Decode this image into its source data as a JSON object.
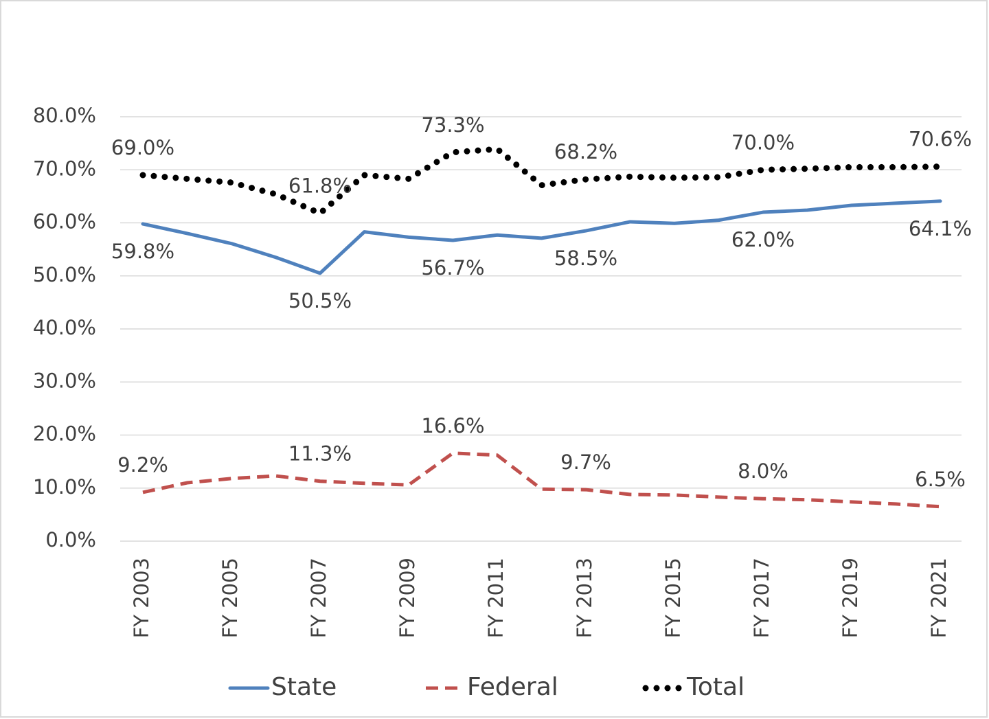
{
  "chart_data": {
    "type": "line",
    "categories": [
      "FY 2003",
      null,
      "FY 2005",
      null,
      "FY 2007",
      null,
      "FY 2009",
      null,
      "FY 2011",
      null,
      "FY 2013",
      null,
      "FY 2015",
      null,
      "FY 2017",
      null,
      "FY 2019",
      null,
      "FY 2021"
    ],
    "series": [
      {
        "name": "State",
        "color": "#4f81bd",
        "style": "solid",
        "values": [
          59.8,
          58.0,
          56.1,
          53.5,
          50.5,
          58.3,
          57.3,
          56.7,
          57.7,
          57.1,
          58.5,
          60.2,
          59.9,
          60.5,
          62.0,
          62.4,
          63.3,
          63.7,
          64.1
        ],
        "value_labels": [
          "59.8%",
          null,
          null,
          null,
          "50.5%",
          null,
          null,
          "56.7%",
          null,
          null,
          "58.5%",
          null,
          null,
          null,
          "62.0%",
          null,
          null,
          null,
          "64.1%"
        ]
      },
      {
        "name": "Federal",
        "color": "#c0504d",
        "style": "dashed",
        "values": [
          9.2,
          11.0,
          11.8,
          12.3,
          11.3,
          10.9,
          10.6,
          16.6,
          16.2,
          9.8,
          9.7,
          8.8,
          8.7,
          8.3,
          8.0,
          7.8,
          7.4,
          7.0,
          6.5
        ],
        "value_labels": [
          "9.2%",
          null,
          null,
          null,
          "11.3%",
          null,
          null,
          "16.6%",
          null,
          null,
          "9.7%",
          null,
          null,
          null,
          "8.0%",
          null,
          null,
          null,
          "6.5%"
        ]
      },
      {
        "name": "Total",
        "color": "#000000",
        "style": "dotted",
        "values": [
          69.0,
          68.3,
          67.6,
          65.4,
          61.8,
          69.0,
          68.3,
          73.3,
          73.9,
          67.1,
          68.2,
          68.7,
          68.5,
          68.6,
          70.0,
          70.2,
          70.5,
          70.5,
          70.6
        ],
        "value_labels": [
          "69.0%",
          null,
          null,
          null,
          "61.8%",
          null,
          null,
          "73.3%",
          null,
          null,
          "68.2%",
          null,
          null,
          null,
          "70.0%",
          null,
          null,
          null,
          "70.6%"
        ]
      }
    ],
    "ylim": [
      0,
      80
    ],
    "yticks": [
      {
        "value": 0,
        "label": "0.0%"
      },
      {
        "value": 10,
        "label": "10.0%"
      },
      {
        "value": 20,
        "label": "20.0%"
      },
      {
        "value": 30,
        "label": "30.0%"
      },
      {
        "value": 40,
        "label": "40.0%"
      },
      {
        "value": 50,
        "label": "50.0%"
      },
      {
        "value": 60,
        "label": "60.0%"
      },
      {
        "value": 70,
        "label": "70.0%"
      },
      {
        "value": 80,
        "label": "80.0%"
      }
    ],
    "grid": true,
    "legend": "bottom"
  }
}
